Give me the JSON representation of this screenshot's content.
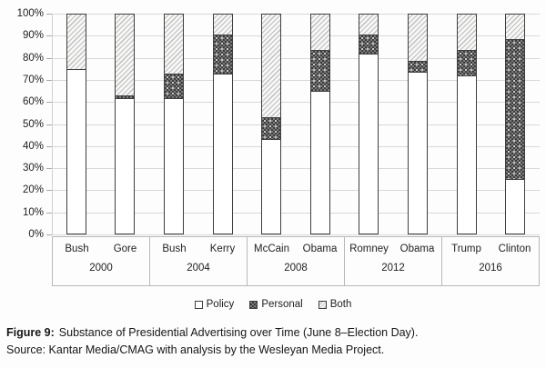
{
  "figure": {
    "caption_label": "Figure 9:",
    "caption_text": "Substance of Presidential Advertising over Time (June 8–Election Day).",
    "source_text": "Source: Kantar Media/CMAG with analysis by the Wesleyan Media Project."
  },
  "colors": {
    "grid": "#d8d8d8",
    "bar-border": "#3f3f3f",
    "hatch": "#bfbfbf",
    "box-border": "#b8b8b8"
  },
  "chart_data": {
    "type": "bar",
    "stacked": true,
    "unit": "percent",
    "ylim": [
      0,
      100
    ],
    "grid": true,
    "ytick_labels": [
      "100%",
      "90%",
      "80%",
      "70%",
      "60%",
      "50%",
      "40%",
      "30%",
      "20%",
      "10%",
      "0%"
    ],
    "legend_position": "bottom",
    "legend": [
      {
        "label": "Policy",
        "pattern": "policy"
      },
      {
        "label": "Personal",
        "pattern": "personal"
      },
      {
        "label": "Both",
        "pattern": "both"
      }
    ],
    "stack_order_bottom_to_top": [
      "Policy",
      "Personal",
      "Both"
    ],
    "groups": [
      {
        "year": "2000",
        "bars": [
          {
            "label": "Bush",
            "policy": 75,
            "personal": 0,
            "both": 25
          },
          {
            "label": "Gore",
            "policy": 62,
            "personal": 1,
            "both": 37
          }
        ]
      },
      {
        "year": "2004",
        "bars": [
          {
            "label": "Bush",
            "policy": 62,
            "personal": 11,
            "both": 27
          },
          {
            "label": "Kerry",
            "policy": 73,
            "personal": 18,
            "both": 9
          }
        ]
      },
      {
        "year": "2008",
        "bars": [
          {
            "label": "McCain",
            "policy": 43,
            "personal": 10,
            "both": 47
          },
          {
            "label": "Obama",
            "policy": 65,
            "personal": 19,
            "both": 16
          }
        ]
      },
      {
        "year": "2012",
        "bars": [
          {
            "label": "Romney",
            "policy": 82,
            "personal": 9,
            "both": 9
          },
          {
            "label": "Obama",
            "policy": 74,
            "personal": 5,
            "both": 21
          }
        ]
      },
      {
        "year": "2016",
        "bars": [
          {
            "label": "Trump",
            "policy": 72,
            "personal": 12,
            "both": 16
          },
          {
            "label": "Clinton",
            "policy": 25,
            "personal": 64,
            "both": 11
          }
        ]
      }
    ]
  }
}
